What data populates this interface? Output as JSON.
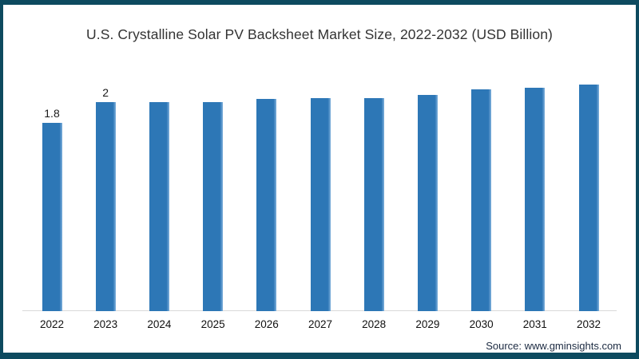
{
  "footer": {
    "source": "Source: www.gminsights.com"
  },
  "colors": {
    "frame": "#0d4a5f",
    "bar": "#2d77b6",
    "bar_highlight": "#7fb0dc",
    "axis_line": "#d9d9d9",
    "title_text": "#333333",
    "source_text": "#1b2a41"
  },
  "chart_data": {
    "type": "bar",
    "title": "U.S. Crystalline Solar PV Backsheet Market Size, 2022-2032 (USD Billion)",
    "categories": [
      "2022",
      "2023",
      "2024",
      "2025",
      "2026",
      "2027",
      "2028",
      "2029",
      "2030",
      "2031",
      "2032"
    ],
    "values": [
      1.8,
      2,
      2,
      2,
      2.03,
      2.04,
      2.04,
      2.07,
      2.12,
      2.14,
      2.17
    ],
    "data_labels": [
      "1.8",
      "2",
      "",
      "",
      "",
      "",
      "",
      "",
      "",
      "",
      ""
    ],
    "xlabel": "",
    "ylabel": "",
    "ylim": [
      0,
      2.8
    ],
    "grid": false,
    "legend": false
  }
}
